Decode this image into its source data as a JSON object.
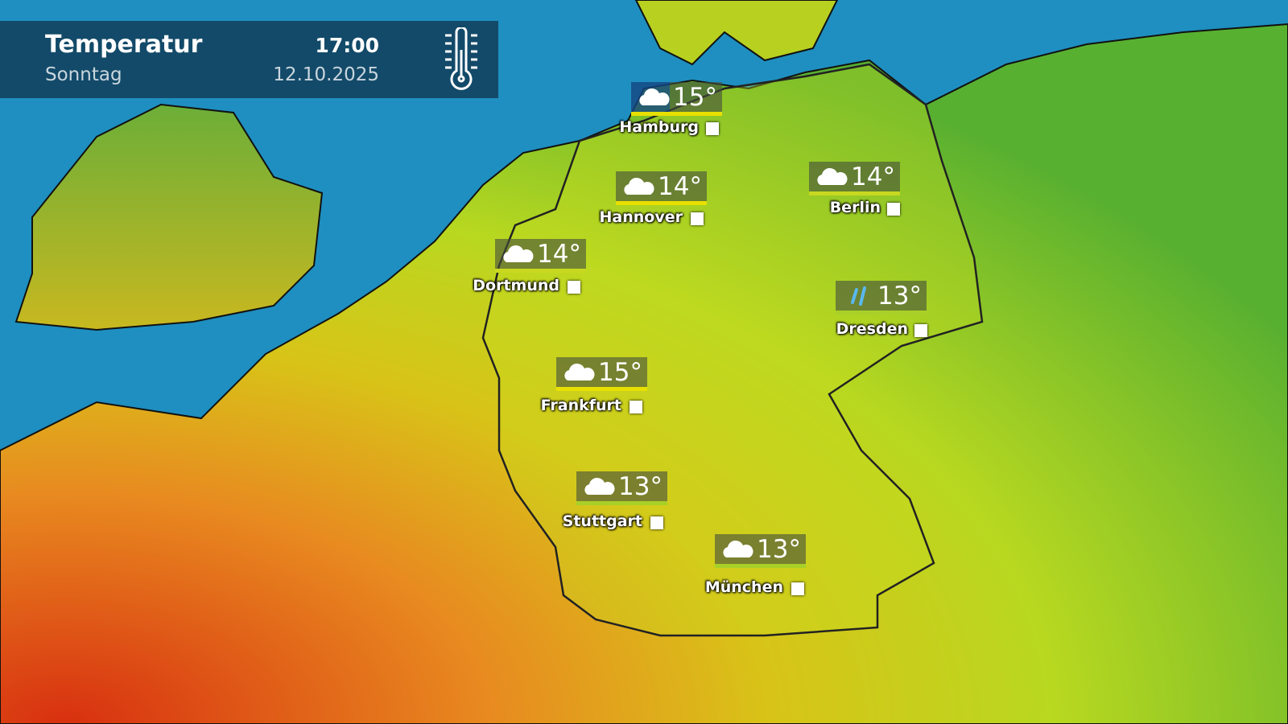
{
  "header": {
    "title": "Temperatur",
    "day": "Sonntag",
    "time": "17:00",
    "date": "12.10.2025",
    "icon": "thermometer-icon"
  },
  "colors": {
    "sea": "#1e8fc0",
    "header_bg": "#134a69",
    "warm": "#e8a020",
    "mild": "#e8e000",
    "cool": "#6cbf30"
  },
  "cities": [
    {
      "name": "Hamburg",
      "temp": "15°",
      "icon": "cloud-icon"
    },
    {
      "name": "Hannover",
      "temp": "14°",
      "icon": "cloud-icon"
    },
    {
      "name": "Berlin",
      "temp": "14°",
      "icon": "cloud-icon"
    },
    {
      "name": "Dortmund",
      "temp": "14°",
      "icon": "cloud-icon"
    },
    {
      "name": "Dresden",
      "temp": "13°",
      "icon": "rain-icon"
    },
    {
      "name": "Frankfurt",
      "temp": "15°",
      "icon": "cloud-icon"
    },
    {
      "name": "Stuttgart",
      "temp": "13°",
      "icon": "cloud-icon"
    },
    {
      "name": "München",
      "temp": "13°",
      "icon": "cloud-icon"
    }
  ]
}
